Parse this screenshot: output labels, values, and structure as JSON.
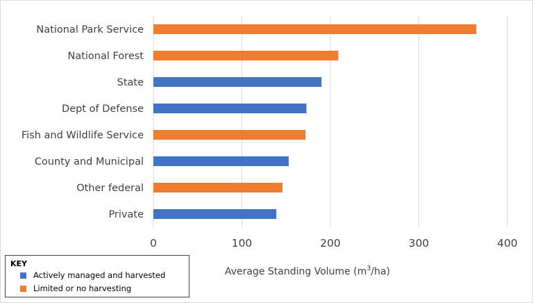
{
  "chart_data": {
    "type": "bar",
    "orientation": "horizontal",
    "categories": [
      "National Park Service",
      "National Forest",
      "State",
      "Dept of Defense",
      "Fish and Wildlife Service",
      "County and Municipal",
      "Other federal",
      "Private"
    ],
    "values": [
      365,
      209,
      190,
      173,
      172,
      153,
      146,
      139
    ],
    "groups": [
      "limited",
      "limited",
      "managed",
      "managed",
      "limited",
      "managed",
      "limited",
      "managed"
    ],
    "xlabel_prefix": "Average Standing Volume (m",
    "xlabel_sup": "3",
    "xlabel_suffix": "/ha)",
    "ylabel": "",
    "xlim": [
      0,
      400
    ],
    "xticks": [
      0,
      100,
      200,
      300,
      400
    ],
    "grid": true,
    "legend": {
      "title": "KEY",
      "placement": "bottom-left",
      "entries": [
        {
          "key": "managed",
          "label": "Actively managed and harvested",
          "color": "#4472c4"
        },
        {
          "key": "limited",
          "label": "Limited or no harvesting",
          "color": "#ed7d31"
        }
      ]
    }
  }
}
